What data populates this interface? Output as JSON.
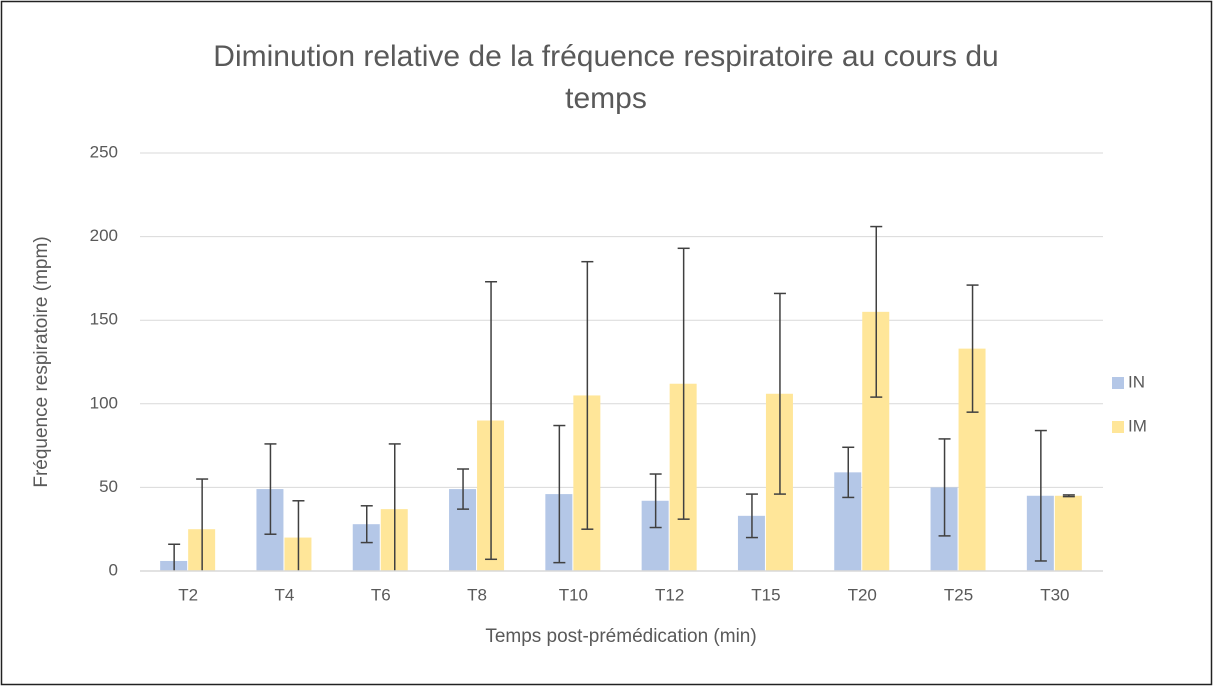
{
  "chart_data": {
    "type": "bar",
    "title": "Diminution relative de la fréquence respiratoire au cours du temps",
    "x_label": "Temps post-prémédication (min)",
    "y_label": "Fréquence respiratoire (mpm)",
    "categories": [
      "T2",
      "T4",
      "T6",
      "T8",
      "T10",
      "T12",
      "T15",
      "T20",
      "T25",
      "T30"
    ],
    "series": [
      {
        "name": "IN",
        "color": "#b4c7e7",
        "values": [
          6,
          49,
          28,
          49,
          46,
          42,
          33,
          59,
          50,
          45
        ],
        "errors": [
          10,
          27,
          11,
          12,
          41,
          16,
          13,
          15,
          29,
          39
        ]
      },
      {
        "name": "IM",
        "color": "#ffe699",
        "values": [
          25,
          20,
          37,
          90,
          105,
          112,
          106,
          155,
          133,
          45
        ],
        "errors": [
          30,
          22,
          39,
          83,
          80,
          81,
          60,
          51,
          38,
          0.5
        ]
      }
    ],
    "ylim": [
      0,
      250
    ],
    "yticks": [
      0,
      50,
      100,
      150,
      200,
      250
    ],
    "grid": true,
    "legend": "right"
  }
}
